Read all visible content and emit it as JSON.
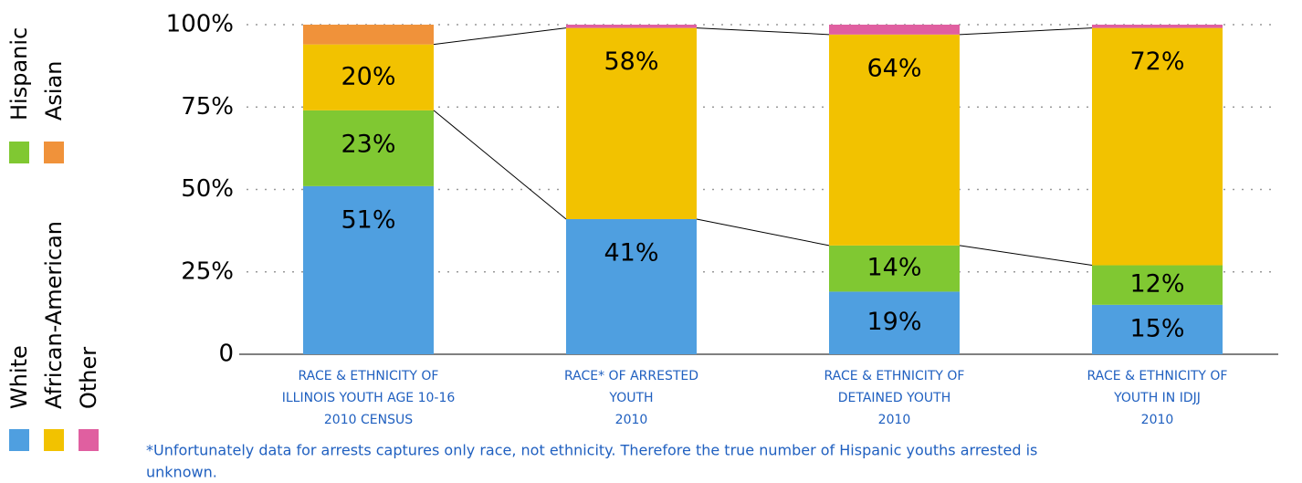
{
  "chart_data": {
    "type": "stacked_bar",
    "categories": [
      [
        "RACE & ETHNICITY OF",
        "ILLINOIS YOUTH AGE 10-16",
        "2010 CENSUS"
      ],
      [
        "RACE* OF ARRESTED",
        "YOUTH",
        "2010"
      ],
      [
        "RACE & ETHNICITY OF",
        "DETAINED YOUTH",
        "2010"
      ],
      [
        "RACE & ETHNICITY OF",
        "YOUTH IN IDJJ",
        "2010"
      ]
    ],
    "series": [
      {
        "name": "White",
        "color": "#4f9fe0",
        "values": [
          51,
          41,
          19,
          15
        ],
        "value_labels": [
          "51%",
          "41%",
          "19%",
          "15%"
        ]
      },
      {
        "name": "Hispanic",
        "color": "#80c832",
        "values": [
          23,
          null,
          14,
          12
        ],
        "value_labels": [
          "23%",
          null,
          "14%",
          "12%"
        ]
      },
      {
        "name": "African-American",
        "color": "#f2c200",
        "values": [
          20,
          58,
          64,
          72
        ],
        "value_labels": [
          "20%",
          "58%",
          "64%",
          "72%"
        ]
      },
      {
        "name": "Asian",
        "color": "#f0923a",
        "values": [
          6,
          0,
          0,
          0
        ]
      },
      {
        "name": "Other",
        "color": "#e05fa0",
        "values": [
          0,
          1,
          3,
          1
        ]
      }
    ],
    "ylim": [
      0,
      100
    ],
    "yticks": [
      0,
      {
        "value": 25,
        "label": "25%"
      },
      {
        "value": 50,
        "label": "50%"
      },
      {
        "value": 75,
        "label": "75%"
      },
      {
        "value": 100,
        "label": "100%"
      }
    ],
    "grid": true,
    "footnote": [
      "*Unfortunately data for arrests captures only race, not ethnicity.  Therefore the true number of Hispanic youths arrested is",
      "unknown."
    ]
  }
}
